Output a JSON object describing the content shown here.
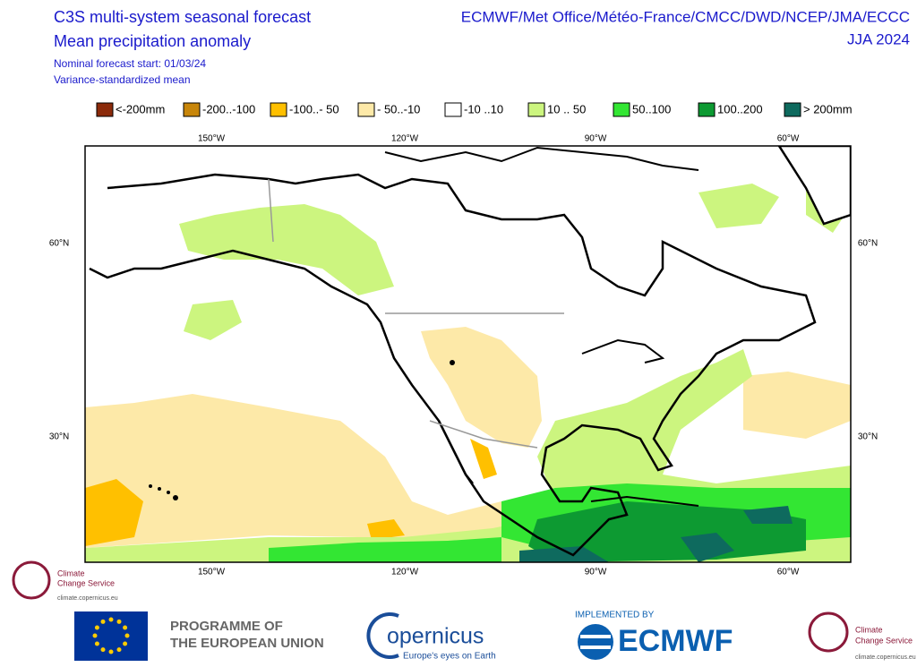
{
  "header": {
    "title_lines": [
      "C3S multi-system seasonal forecast",
      "Mean precipitation anomaly"
    ],
    "subtitle_lines": [
      "Nominal forecast start: 01/03/24",
      "Variance-standardized mean"
    ],
    "right_lines": [
      "ECMWF/Met Office/Météo-France/CMCC/DWD/NCEP/JMA/ECCC",
      "JJA 2024"
    ]
  },
  "legend": [
    {
      "label": "<-200mm",
      "color": "#8b2a0a"
    },
    {
      "label": "-200..-100",
      "color": "#c8860a"
    },
    {
      "label": "-100..- 50",
      "color": "#ffc000"
    },
    {
      "label": "- 50..-10",
      "color": "#fde9a8"
    },
    {
      "label": "-10 ..10",
      "color": "#ffffff"
    },
    {
      "label": "10 .. 50",
      "color": "#ccf57f"
    },
    {
      "label": "50..100",
      "color": "#33e633"
    },
    {
      "label": "100..200",
      "color": "#0d9a32"
    },
    {
      "label": "> 200mm",
      "color": "#0e6a5e"
    }
  ],
  "map": {
    "lon_labels": [
      "150°W",
      "120°W",
      "90°W",
      "60°W"
    ],
    "lat_labels": [
      "60°N",
      "30°N"
    ]
  },
  "footer": {
    "c3s_small": [
      "Climate",
      "Change Service",
      "climate.copernicus.eu"
    ],
    "eu": [
      "PROGRAMME OF",
      "THE EUROPEAN UNION"
    ],
    "copernicus": [
      "opernicus",
      "Europe's eyes on Earth"
    ],
    "ecmwf": [
      "IMPLEMENTED BY",
      "ECMWF"
    ],
    "c3s_right": [
      "Climate",
      "Change Service",
      "climate.copernicus.eu"
    ]
  }
}
